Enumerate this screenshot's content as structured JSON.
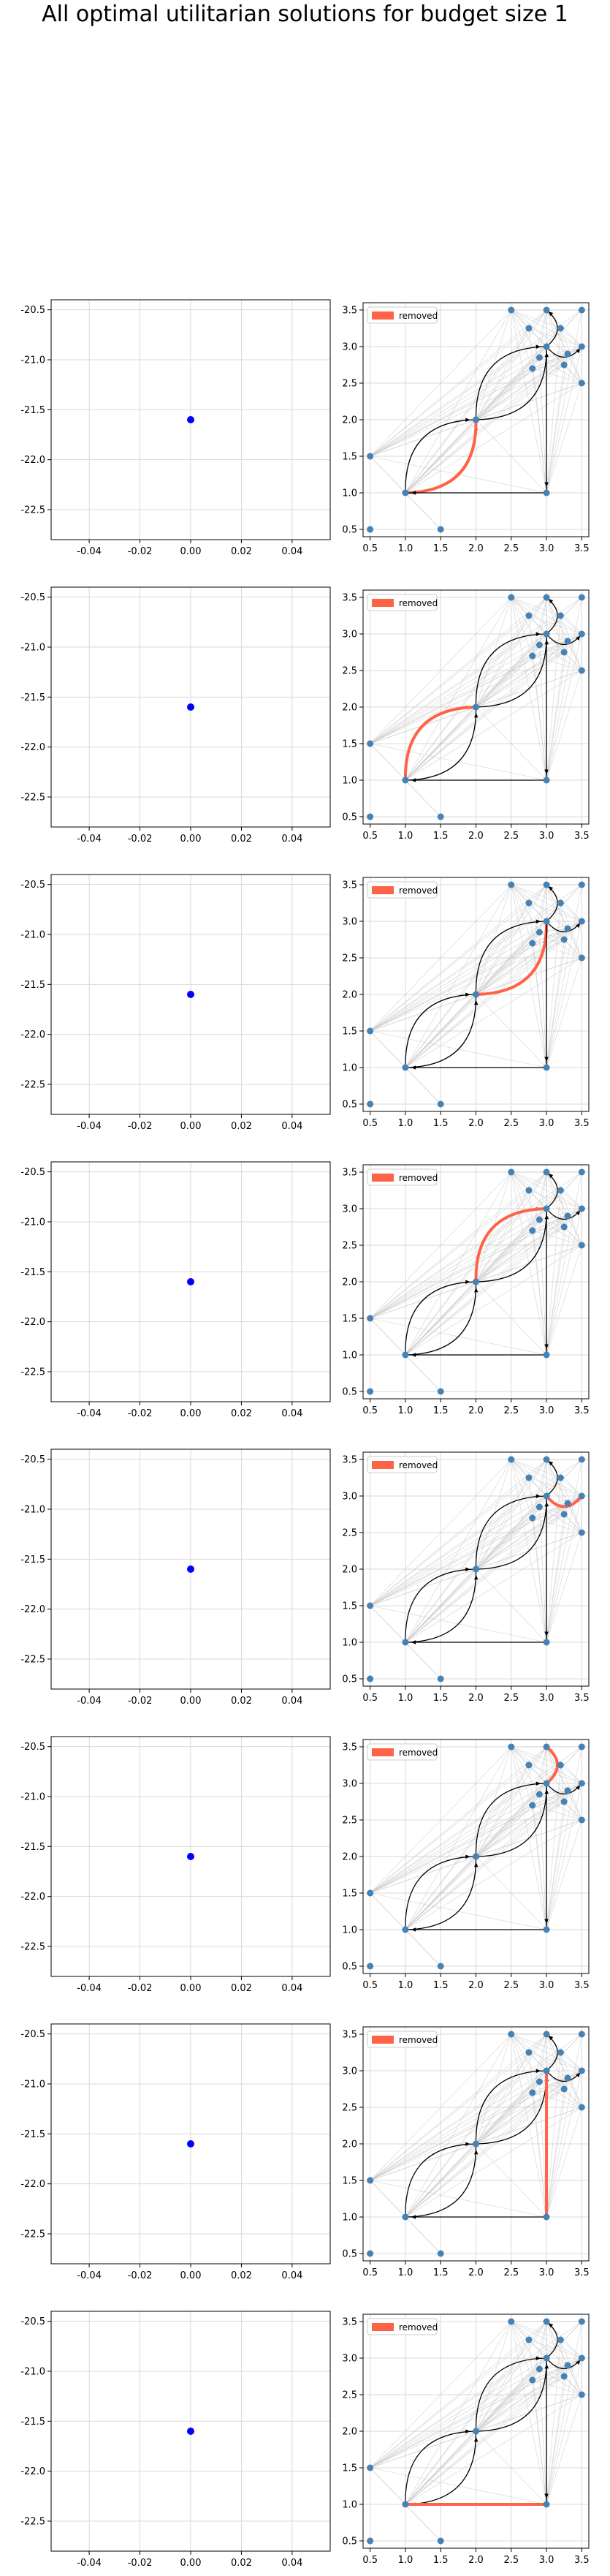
{
  "title": "All optimal utilitarian solutions for budget size 1",
  "legend_label": "removed",
  "colors": {
    "point": "#0000ff",
    "node": "#4682b4",
    "edge": "#000000",
    "removed": "#ff6347",
    "faint": "#c8c8c8",
    "grid": "#d9d9d9"
  },
  "chart_data": [
    {
      "panel": "scatter",
      "type": "scatter",
      "x": [
        0.0
      ],
      "y": [
        -21.6
      ],
      "xlim": [
        -0.055,
        0.055
      ],
      "ylim": [
        -22.8,
        -20.4
      ],
      "xticks": [
        "-0.04",
        "-0.02",
        "0.00",
        "0.02",
        "0.04"
      ],
      "xtick_values": [
        -0.04,
        -0.02,
        0.0,
        0.02,
        0.04
      ],
      "yticks": [
        "-20.5",
        "-21.0",
        "-21.5",
        "-22.0",
        "-22.5"
      ],
      "ytick_values": [
        -20.5,
        -21.0,
        -21.5,
        -22.0,
        -22.5
      ],
      "grid": true
    },
    {
      "panel": "network",
      "type": "network",
      "xlim": [
        0.4,
        3.6
      ],
      "ylim": [
        0.4,
        3.6
      ],
      "xticks": [
        "0.5",
        "1.0",
        "1.5",
        "2.0",
        "2.5",
        "3.0",
        "3.5"
      ],
      "xtick_values": [
        0.5,
        1.0,
        1.5,
        2.0,
        2.5,
        3.0,
        3.5
      ],
      "yticks": [
        "0.5",
        "1.0",
        "1.5",
        "2.0",
        "2.5",
        "3.0",
        "3.5"
      ],
      "ytick_values": [
        0.5,
        1.0,
        1.5,
        2.0,
        2.5,
        3.0,
        3.5
      ],
      "legend": "upper left",
      "grid": true,
      "nodes": [
        [
          0.5,
          0.5
        ],
        [
          0.5,
          1.5
        ],
        [
          1.0,
          1.0
        ],
        [
          1.5,
          0.5
        ],
        [
          2.0,
          2.0
        ],
        [
          3.0,
          1.0
        ],
        [
          3.0,
          3.0
        ],
        [
          2.5,
          3.5
        ],
        [
          3.0,
          3.5
        ],
        [
          3.5,
          3.5
        ],
        [
          3.5,
          2.5
        ],
        [
          3.5,
          3.0
        ],
        [
          2.75,
          3.25
        ],
        [
          2.8,
          2.7
        ],
        [
          3.25,
          2.75
        ],
        [
          3.2,
          3.25
        ],
        [
          2.9,
          2.85
        ],
        [
          3.3,
          2.9
        ]
      ],
      "edges": [
        {
          "from": [
            1.0,
            1.0
          ],
          "to": [
            2.0,
            2.0
          ],
          "curve": 0.25
        },
        {
          "from": [
            1.0,
            1.0
          ],
          "to": [
            2.0,
            2.0
          ],
          "curve": -0.25
        },
        {
          "from": [
            2.0,
            2.0
          ],
          "to": [
            3.0,
            3.0
          ],
          "curve": 0.25
        },
        {
          "from": [
            2.0,
            2.0
          ],
          "to": [
            3.0,
            3.0
          ],
          "curve": -0.25
        },
        {
          "from": [
            3.0,
            3.0
          ],
          "to": [
            3.0,
            3.5
          ],
          "curve": 0.3
        },
        {
          "from": [
            3.0,
            3.0
          ],
          "to": [
            3.5,
            3.0
          ],
          "curve": 0.3
        },
        {
          "from": [
            3.0,
            3.0
          ],
          "to": [
            3.0,
            1.0
          ],
          "curve": 0.0
        },
        {
          "from": [
            3.0,
            1.0
          ],
          "to": [
            1.0,
            1.0
          ],
          "curve": 0.0
        }
      ]
    }
  ],
  "removed_edge_index": [
    0,
    1,
    2,
    3,
    5,
    4,
    6,
    7
  ]
}
